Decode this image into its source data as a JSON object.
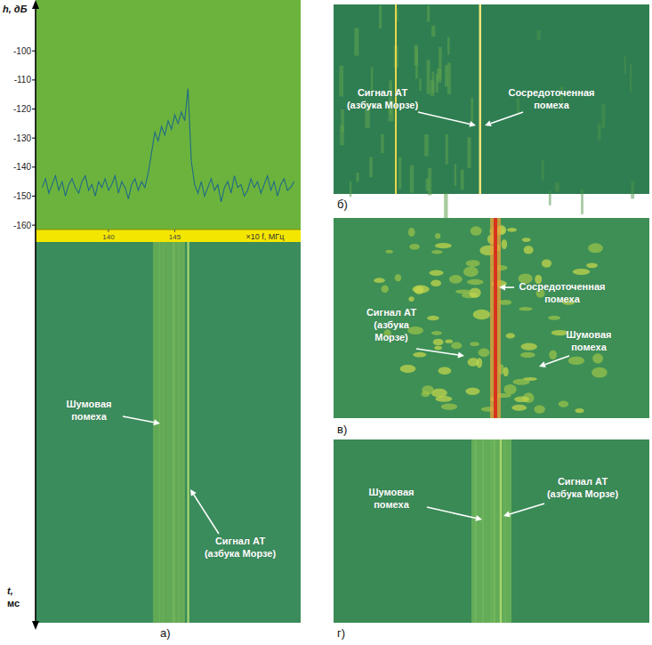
{
  "chart_data": {
    "type": "line",
    "y_label": "h, дБ",
    "x_label": "×10 f, МГц",
    "x": [
      135.0,
      135.25,
      135.5,
      135.75,
      136.0,
      136.25,
      136.5,
      136.75,
      137.0,
      137.25,
      137.5,
      137.75,
      138.0,
      138.25,
      138.5,
      138.75,
      139.0,
      139.25,
      139.5,
      139.75,
      140.0,
      140.25,
      140.5,
      140.75,
      141.0,
      141.25,
      141.5,
      141.75,
      142.0,
      142.25,
      142.5,
      142.75,
      143.0,
      143.25,
      143.5,
      143.75,
      144.0,
      144.25,
      144.5,
      144.75,
      145.0,
      145.25,
      145.5,
      145.75,
      146.0,
      146.25,
      146.5,
      146.75,
      147.0,
      147.25,
      147.5,
      147.75,
      148.0,
      148.25,
      148.5,
      148.75,
      149.0,
      149.25,
      149.5,
      149.75,
      150.0,
      150.25,
      150.5,
      150.75,
      151.0,
      151.25,
      151.5,
      151.75,
      152.0,
      152.25,
      152.5,
      152.75,
      153.0,
      153.25,
      153.5,
      153.75,
      154.0
    ],
    "values": [
      -147,
      -144,
      -149,
      -146,
      -143,
      -148,
      -145,
      -150,
      -146,
      -144,
      -147,
      -149,
      -145,
      -143,
      -148,
      -146,
      -150,
      -145,
      -147,
      -144,
      -148,
      -146,
      -143,
      -149,
      -145,
      -147,
      -151,
      -146,
      -144,
      -148,
      -145,
      -147,
      -142,
      -135,
      -128,
      -131,
      -126,
      -129,
      -124,
      -127,
      -122,
      -125,
      -121,
      -124,
      -113,
      -138,
      -146,
      -149,
      -145,
      -150,
      -147,
      -144,
      -148,
      -146,
      -152,
      -147,
      -145,
      -149,
      -143,
      -147,
      -146,
      -150,
      -148,
      -144,
      -147,
      -145,
      -149,
      -146,
      -143,
      -148,
      -145,
      -150,
      -146,
      -144,
      -148,
      -147,
      -145
    ],
    "color": "#1f6a86",
    "xlim": [
      134.5,
      154.5
    ],
    "xticks": [
      140,
      145
    ],
    "ylim": [
      -161.5,
      -84
    ],
    "yticks": [
      -100,
      -110,
      -120,
      -130,
      -140,
      -150,
      -160
    ],
    "grid": false
  },
  "time_axis": {
    "lines": [
      "t,",
      "мс"
    ]
  },
  "panels": [
    {
      "letter": "а)",
      "annotations": [
        {
          "lines": [
            "Шумовая",
            "помеха"
          ]
        },
        {
          "lines": [
            "Сигнал АТ",
            "(азбука Морзе)"
          ]
        }
      ]
    },
    {
      "letter": "б)",
      "annotations": [
        {
          "lines": [
            "Сигнал АТ",
            "(азбука Морзе)"
          ]
        },
        {
          "lines": [
            "Сосредоточенная",
            "помеха"
          ]
        }
      ]
    },
    {
      "letter": "в)",
      "annotations": [
        {
          "lines": [
            "Сосредоточенная",
            "помеха"
          ]
        },
        {
          "lines": [
            "Сигнал АТ",
            "(азбука",
            "Морзе)"
          ]
        },
        {
          "lines": [
            "Шумовая",
            "помеха"
          ]
        }
      ]
    },
    {
      "letter": "г)",
      "annotations": [
        {
          "lines": [
            "Шумовая",
            "помеха"
          ]
        },
        {
          "lines": [
            "Сигнал АТ",
            "(азбука Морзе)"
          ]
        }
      ]
    }
  ]
}
